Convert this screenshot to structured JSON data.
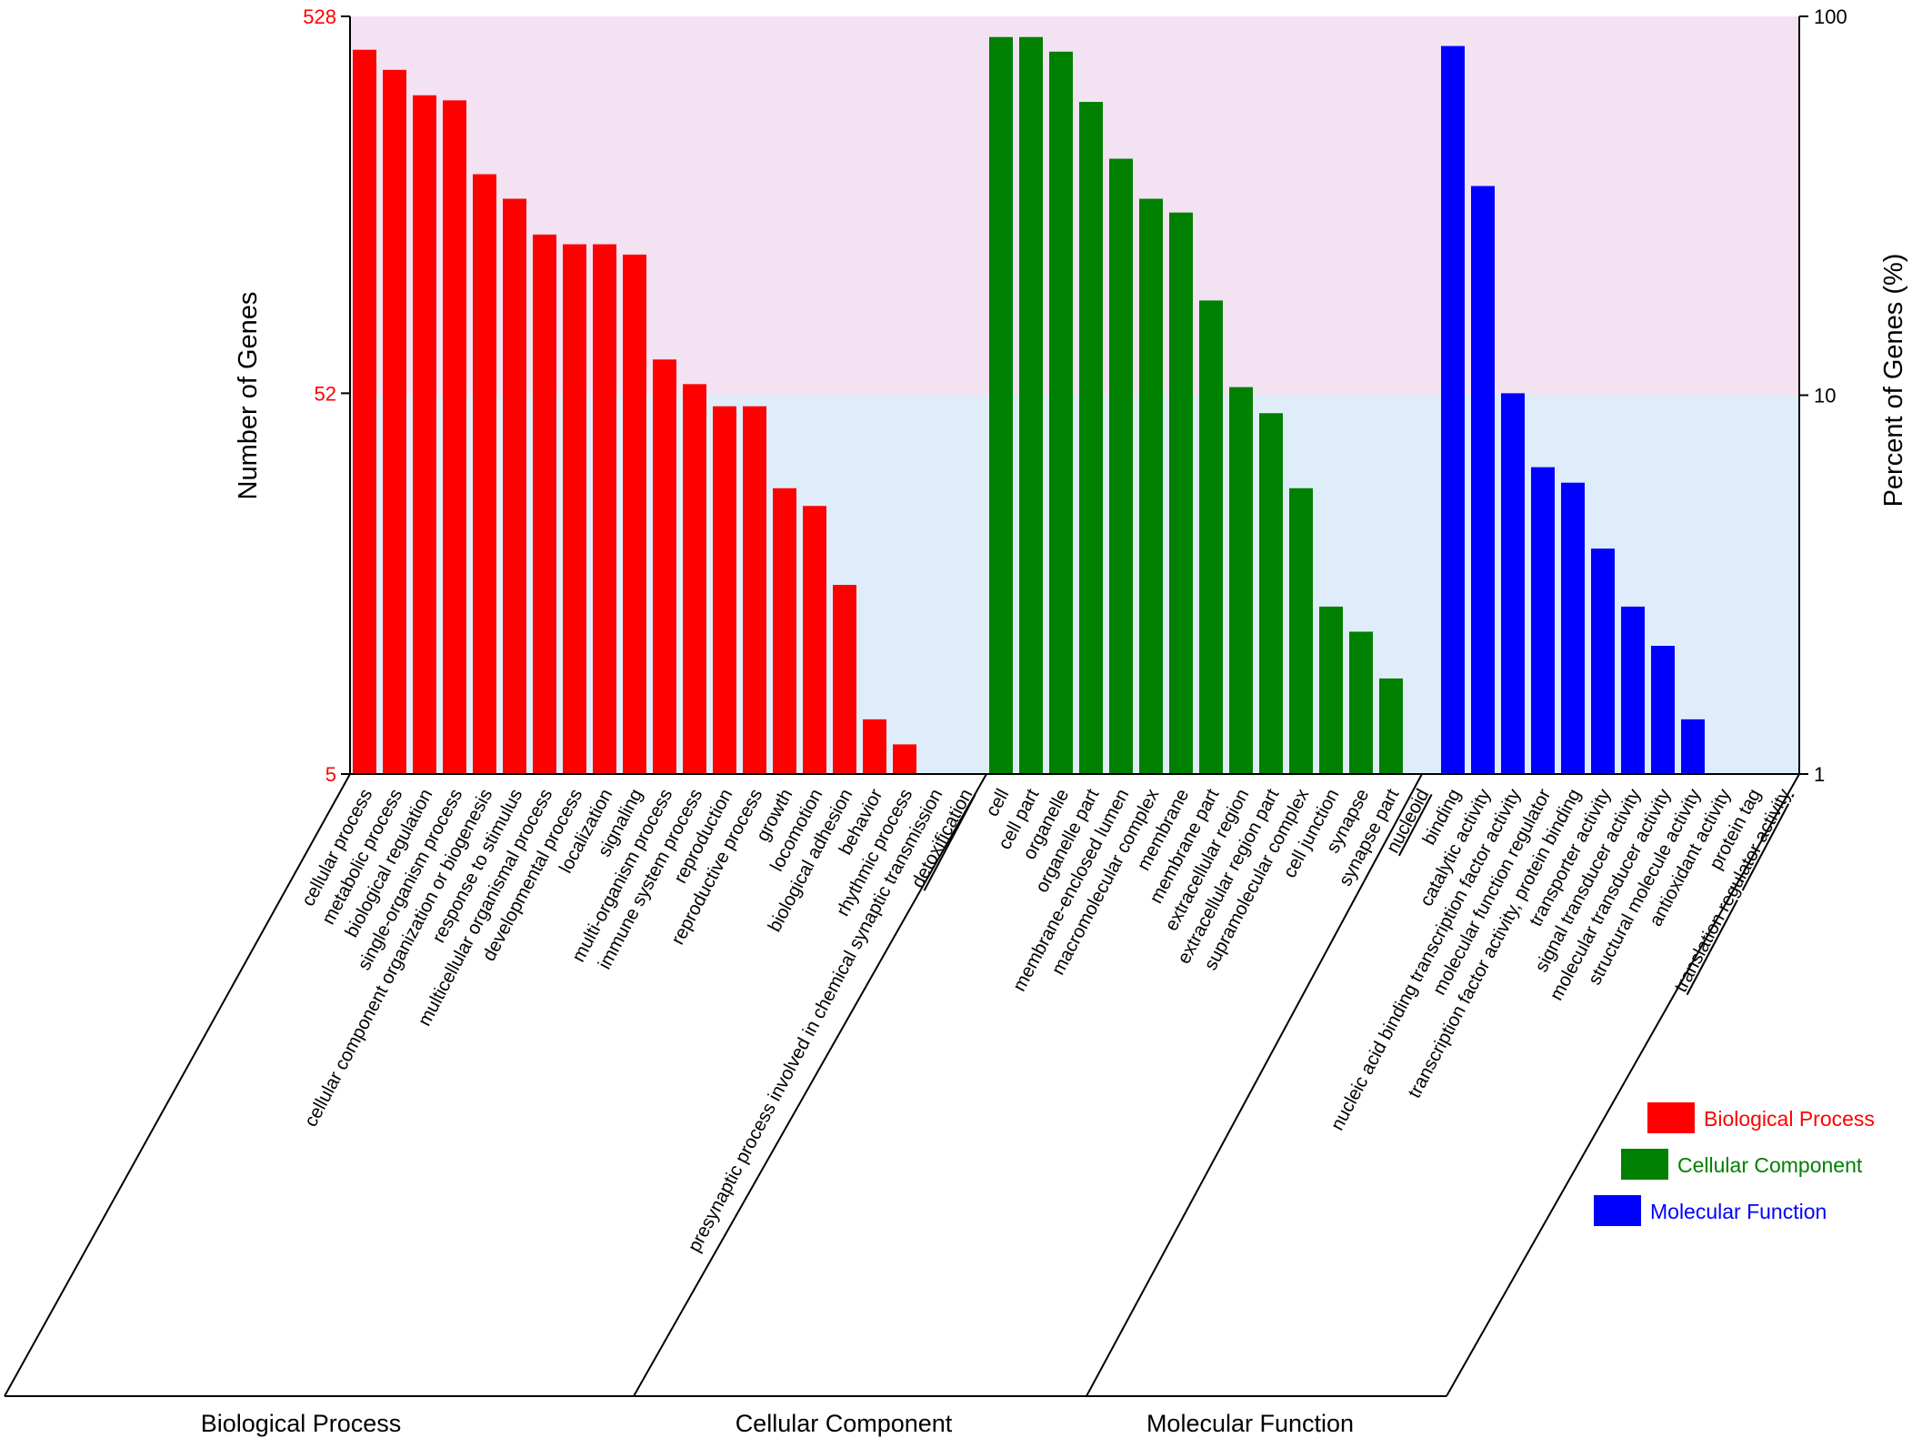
{
  "chart_data": {
    "type": "bar",
    "ylabel": "Number of Genes",
    "y2label": "Percent of Genes (%)",
    "y_scale": "log",
    "yticks": [
      "528",
      "52",
      "5"
    ],
    "y2ticks": [
      "100",
      "10",
      "1"
    ],
    "y_range_genes": [
      5,
      528
    ],
    "y2_range_percent": [
      1,
      100
    ],
    "background_bands": [
      {
        "range_percent": [
          10,
          100
        ],
        "color": "#f2e2f2"
      },
      {
        "range_percent": [
          1,
          10
        ],
        "color": "#dfedfa"
      }
    ],
    "legend_placement": "bottom-right",
    "groups": [
      {
        "name": "Biological Process",
        "color": "#ff0000",
        "categories": [
          "cellular process",
          "metabolic process",
          "biological regulation",
          "single-organism process",
          "cellular component organization or biogenesis",
          "response to stimulus",
          "multicellular organismal process",
          "developmental process",
          "localization",
          "signaling",
          "multi-organism process",
          "immune system process",
          "reproduction",
          "reproductive process",
          "growth",
          "locomotion",
          "biological adhesion",
          "behavior",
          "rhythmic process",
          "presynaptic process involved in chemical synaptic transmission",
          "detoxification"
        ],
        "values": [
          430,
          380,
          325,
          315,
          200,
          172,
          138,
          130,
          130,
          122,
          64,
          55,
          48,
          48,
          29,
          26,
          16,
          7,
          6,
          0,
          0
        ],
        "underlined": [
          "detoxification"
        ]
      },
      {
        "name": "Cellular Component",
        "color": "#008000",
        "categories": [
          "cell",
          "cell part",
          "organelle",
          "organelle part",
          "membrane-enclosed lumen",
          "macromolecular complex",
          "membrane",
          "membrane part",
          "extracellular region",
          "extracellular region part",
          "supramolecular complex",
          "cell junction",
          "synapse",
          "synapse part",
          "nucleoid"
        ],
        "values": [
          465,
          465,
          425,
          312,
          220,
          172,
          158,
          92,
          54,
          46,
          29,
          14,
          12,
          9,
          0
        ],
        "underlined": [
          "nucleoid"
        ]
      },
      {
        "name": "Molecular Function",
        "color": "#0000ff",
        "categories": [
          "binding",
          "catalytic activity",
          "nucleic acid binding transcription factor activity",
          "molecular function regulator",
          "transcription factor activity, protein binding",
          "transporter activity",
          "signal transducer activity",
          "molecular transducer activity",
          "structural molecule activity",
          "antioxidant activity",
          "protein tag",
          "translation regulator activity"
        ],
        "values": [
          440,
          186,
          52,
          33,
          30,
          20,
          14,
          11,
          7,
          0,
          0,
          0
        ],
        "underlined": [
          "translation regulator activity"
        ]
      }
    ],
    "legend": [
      "Biological Process",
      "Cellular Component",
      "Molecular Function"
    ]
  }
}
